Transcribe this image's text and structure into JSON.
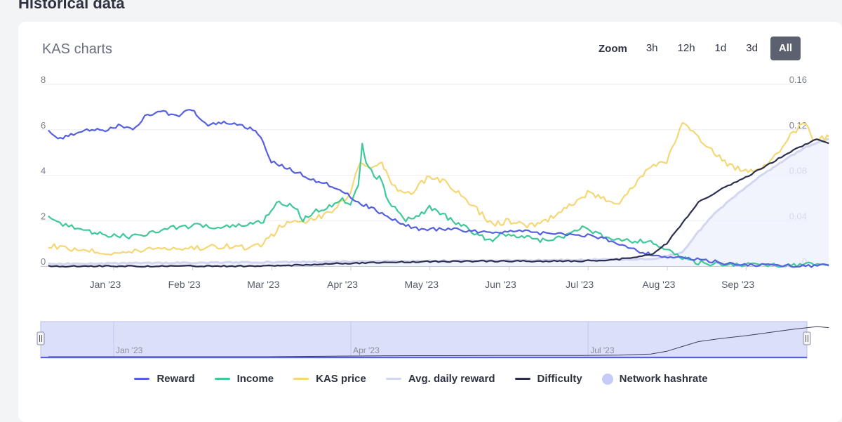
{
  "page": {
    "section_title": "Historical data",
    "card_title": "KAS charts"
  },
  "zoom": {
    "label": "Zoom",
    "buttons": [
      "3h",
      "12h",
      "1d",
      "3d",
      "All"
    ],
    "active": "All"
  },
  "legend": [
    {
      "name": "Reward",
      "color": "#5560e0",
      "kind": "line"
    },
    {
      "name": "Income",
      "color": "#40c89a",
      "kind": "line"
    },
    {
      "name": "KAS price",
      "color": "#f5d776",
      "kind": "line"
    },
    {
      "name": "Avg. daily reward",
      "color": "#d3d6f0",
      "kind": "line"
    },
    {
      "name": "Difficulty",
      "color": "#2c2f4f",
      "kind": "line"
    },
    {
      "name": "Network hashrate",
      "color": "#c7cbf7",
      "kind": "dot"
    }
  ],
  "chart_data": {
    "type": "line",
    "title": "KAS charts",
    "x_ticks": [
      "Jan '23",
      "Feb '23",
      "Mar '23",
      "Apr '23",
      "May '23",
      "Jun '23",
      "Jul '23",
      "Aug '23",
      "Sep '23"
    ],
    "navigator_ticks": [
      "Jan '23",
      "Apr '23",
      "Jul '23"
    ],
    "left_axis": {
      "ticks": [
        "0",
        "2",
        "4",
        "6",
        "8"
      ],
      "range": [
        0,
        8
      ]
    },
    "right_axis": {
      "ticks": [
        "0",
        "0.04",
        "0.08",
        "0.12",
        "0.16"
      ],
      "range": [
        0,
        0.16
      ]
    },
    "x_range": [
      -0.72,
      9.15
    ],
    "series": [
      {
        "name": "Reward",
        "axis": "left",
        "color": "#5560e0",
        "points": [
          [
            -0.72,
            5.9
          ],
          [
            -0.6,
            5.6
          ],
          [
            -0.4,
            5.8
          ],
          [
            -0.2,
            6.0
          ],
          [
            0,
            6.0
          ],
          [
            0.2,
            6.2
          ],
          [
            0.35,
            6.0
          ],
          [
            0.5,
            6.6
          ],
          [
            0.7,
            6.8
          ],
          [
            0.9,
            6.6
          ],
          [
            1.1,
            6.9
          ],
          [
            1.15,
            6.7
          ],
          [
            1.3,
            6.2
          ],
          [
            1.5,
            6.3
          ],
          [
            1.7,
            6.2
          ],
          [
            1.9,
            6.0
          ],
          [
            2.0,
            5.4
          ],
          [
            2.1,
            4.6
          ],
          [
            2.3,
            4.3
          ],
          [
            2.5,
            4.0
          ],
          [
            2.7,
            3.7
          ],
          [
            2.9,
            3.5
          ],
          [
            3.0,
            3.3
          ],
          [
            3.2,
            2.8
          ],
          [
            3.4,
            2.5
          ],
          [
            3.6,
            2.1
          ],
          [
            3.8,
            1.8
          ],
          [
            4.0,
            1.6
          ],
          [
            4.3,
            1.65
          ],
          [
            4.6,
            1.55
          ],
          [
            4.9,
            1.5
          ],
          [
            5.2,
            1.55
          ],
          [
            5.5,
            1.45
          ],
          [
            5.8,
            1.4
          ],
          [
            6.1,
            1.35
          ],
          [
            6.3,
            1.2
          ],
          [
            6.5,
            1.0
          ],
          [
            6.8,
            0.6
          ],
          [
            7.0,
            0.45
          ],
          [
            7.3,
            0.35
          ],
          [
            7.6,
            0.25
          ],
          [
            7.9,
            0.1
          ],
          [
            8.2,
            0.05
          ],
          [
            8.6,
            0.03
          ],
          [
            9.15,
            0.02
          ]
        ]
      },
      {
        "name": "Income",
        "axis": "left",
        "color": "#40c89a",
        "points": [
          [
            -0.72,
            2.1
          ],
          [
            -0.5,
            1.8
          ],
          [
            -0.2,
            1.5
          ],
          [
            0,
            1.4
          ],
          [
            0.3,
            1.3
          ],
          [
            0.6,
            1.5
          ],
          [
            0.9,
            1.7
          ],
          [
            1.2,
            1.8
          ],
          [
            1.5,
            1.7
          ],
          [
            1.8,
            1.8
          ],
          [
            2.0,
            2.0
          ],
          [
            2.1,
            2.5
          ],
          [
            2.2,
            2.8
          ],
          [
            2.4,
            2.6
          ],
          [
            2.5,
            2.0
          ],
          [
            2.6,
            2.3
          ],
          [
            2.8,
            2.6
          ],
          [
            3.0,
            2.9
          ],
          [
            3.1,
            2.8
          ],
          [
            3.2,
            3.6
          ],
          [
            3.25,
            5.3
          ],
          [
            3.3,
            4.6
          ],
          [
            3.4,
            4.0
          ],
          [
            3.5,
            3.8
          ],
          [
            3.55,
            3.0
          ],
          [
            3.7,
            2.4
          ],
          [
            3.8,
            2.0
          ],
          [
            4.0,
            2.3
          ],
          [
            4.1,
            2.6
          ],
          [
            4.3,
            2.2
          ],
          [
            4.5,
            1.8
          ],
          [
            4.7,
            1.4
          ],
          [
            4.9,
            1.1
          ],
          [
            5.0,
            1.5
          ],
          [
            5.2,
            1.3
          ],
          [
            5.4,
            1.2
          ],
          [
            5.6,
            1.1
          ],
          [
            5.8,
            1.3
          ],
          [
            6.0,
            1.7
          ],
          [
            6.1,
            1.6
          ],
          [
            6.3,
            1.3
          ],
          [
            6.5,
            1.2
          ],
          [
            6.7,
            1.1
          ],
          [
            6.9,
            1.1
          ],
          [
            7.1,
            0.7
          ],
          [
            7.3,
            0.35
          ],
          [
            7.5,
            0.15
          ],
          [
            7.8,
            0.08
          ],
          [
            8.2,
            0.06
          ],
          [
            8.6,
            0.06
          ],
          [
            9.15,
            0.07
          ]
        ]
      },
      {
        "name": "KAS price",
        "axis": "right",
        "color": "#f5d776",
        "points": [
          [
            -0.72,
            0.018
          ],
          [
            -0.5,
            0.016
          ],
          [
            -0.2,
            0.014
          ],
          [
            0,
            0.012
          ],
          [
            0.3,
            0.012
          ],
          [
            0.6,
            0.016
          ],
          [
            0.9,
            0.016
          ],
          [
            1.2,
            0.016
          ],
          [
            1.5,
            0.018
          ],
          [
            1.8,
            0.016
          ],
          [
            2.0,
            0.02
          ],
          [
            2.1,
            0.026
          ],
          [
            2.2,
            0.034
          ],
          [
            2.4,
            0.04
          ],
          [
            2.6,
            0.04
          ],
          [
            2.8,
            0.046
          ],
          [
            3.0,
            0.056
          ],
          [
            3.1,
            0.066
          ],
          [
            3.2,
            0.086
          ],
          [
            3.25,
            0.092
          ],
          [
            3.4,
            0.086
          ],
          [
            3.5,
            0.09
          ],
          [
            3.55,
            0.084
          ],
          [
            3.7,
            0.064
          ],
          [
            3.9,
            0.066
          ],
          [
            4.1,
            0.08
          ],
          [
            4.3,
            0.074
          ],
          [
            4.5,
            0.062
          ],
          [
            4.7,
            0.05
          ],
          [
            4.9,
            0.036
          ],
          [
            5.1,
            0.04
          ],
          [
            5.3,
            0.036
          ],
          [
            5.5,
            0.036
          ],
          [
            5.7,
            0.046
          ],
          [
            5.9,
            0.054
          ],
          [
            6.1,
            0.064
          ],
          [
            6.3,
            0.06
          ],
          [
            6.5,
            0.056
          ],
          [
            6.7,
            0.072
          ],
          [
            6.9,
            0.088
          ],
          [
            7.1,
            0.092
          ],
          [
            7.3,
            0.126
          ],
          [
            7.5,
            0.112
          ],
          [
            7.7,
            0.1
          ],
          [
            7.9,
            0.088
          ],
          [
            8.1,
            0.084
          ],
          [
            8.3,
            0.086
          ],
          [
            8.5,
            0.1
          ],
          [
            8.7,
            0.118
          ],
          [
            8.85,
            0.126
          ],
          [
            8.95,
            0.112
          ],
          [
            9.1,
            0.112
          ],
          [
            9.15,
            0.114
          ]
        ]
      },
      {
        "name": "Avg. daily reward",
        "axis": "left",
        "color": "#d3d6f0",
        "points": [
          [
            -0.72,
            0.1
          ],
          [
            6.9,
            0.3
          ],
          [
            7.3,
            0.6
          ],
          [
            7.5,
            1.5
          ],
          [
            7.7,
            2.3
          ],
          [
            8.0,
            3.2
          ],
          [
            8.3,
            4.0
          ],
          [
            8.6,
            4.7
          ],
          [
            8.9,
            5.3
          ],
          [
            9.15,
            5.6
          ]
        ]
      },
      {
        "name": "Difficulty",
        "axis": "left",
        "color": "#2c2f4f",
        "points": [
          [
            -0.72,
            0.0
          ],
          [
            0,
            0.0
          ],
          [
            1,
            0.0
          ],
          [
            2,
            0.0
          ],
          [
            3.0,
            0.12
          ],
          [
            3.5,
            0.16
          ],
          [
            4,
            0.2
          ],
          [
            5,
            0.22
          ],
          [
            6,
            0.22
          ],
          [
            6.5,
            0.3
          ],
          [
            6.9,
            0.5
          ],
          [
            7.1,
            1.0
          ],
          [
            7.3,
            1.9
          ],
          [
            7.5,
            2.8
          ],
          [
            7.8,
            3.4
          ],
          [
            8.1,
            3.9
          ],
          [
            8.4,
            4.5
          ],
          [
            8.7,
            5.1
          ],
          [
            9.0,
            5.6
          ],
          [
            9.15,
            5.4
          ]
        ]
      }
    ]
  }
}
